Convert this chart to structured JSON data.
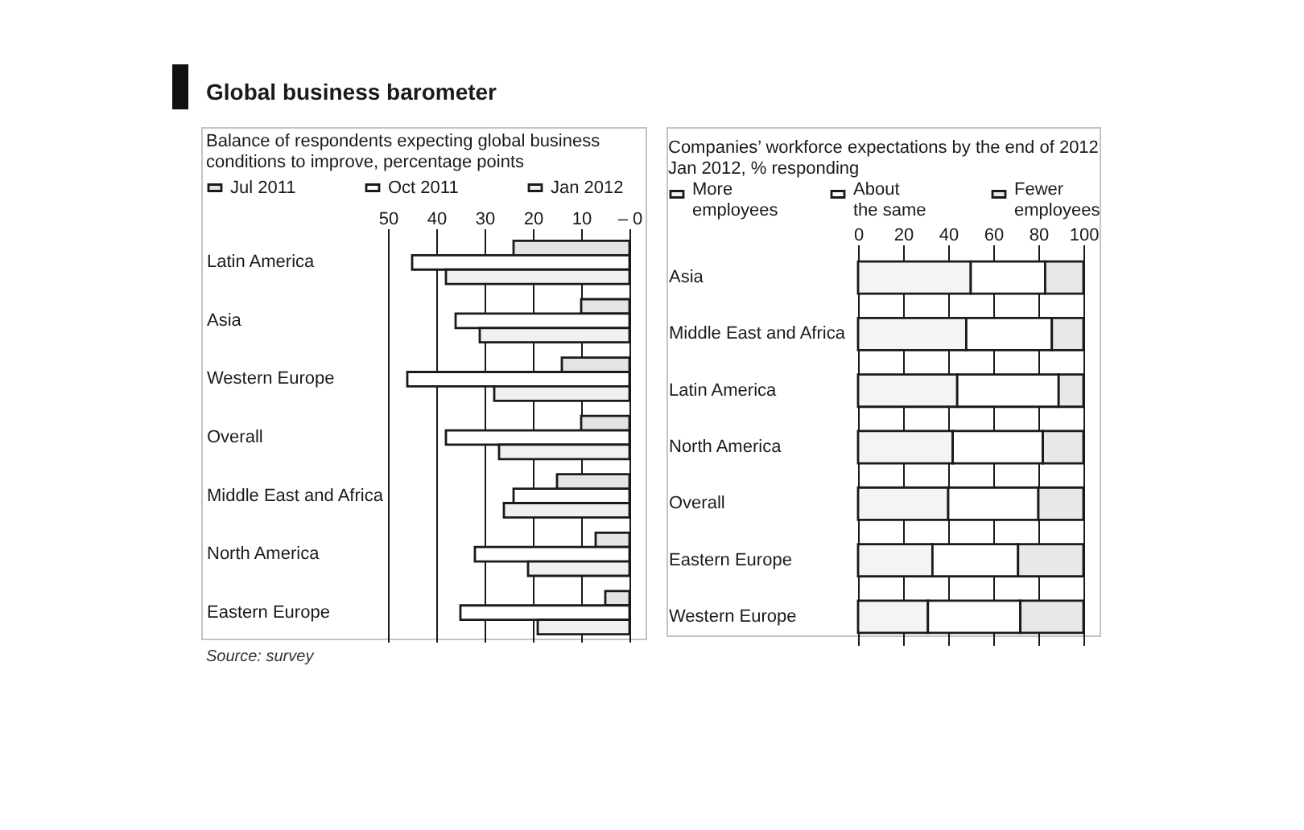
{
  "chart_data": [
    {
      "type": "bar",
      "orientation": "horizontal",
      "title": "Global business barometer",
      "subtitle": "Balance of respondents expecting global business conditions to improve, percentage points",
      "categories": [
        "Latin America",
        "Asia",
        "Western Europe",
        "Overall",
        "Middle East and Africa",
        "North America",
        "Eastern Europe"
      ],
      "series": [
        {
          "name": "Jul 2011",
          "color": "#e4e4e4",
          "values": [
            -24,
            -10,
            -14,
            -10,
            -15,
            -7,
            -5
          ]
        },
        {
          "name": "Oct 2011",
          "color": "#ffffff",
          "values": [
            -45,
            -36,
            -46,
            -38,
            -24,
            -32,
            -35
          ]
        },
        {
          "name": "Jan 2012",
          "color": "#f0f0f0",
          "values": [
            -38,
            -31,
            -28,
            -27,
            -26,
            -21,
            -19
          ]
        }
      ],
      "xlim": [
        -50,
        0
      ],
      "xticks": [
        {
          "value": -50,
          "label": "50"
        },
        {
          "value": -40,
          "label": "40"
        },
        {
          "value": -30,
          "label": "30"
        },
        {
          "value": -20,
          "label": "20"
        },
        {
          "value": -10,
          "label": "10"
        },
        {
          "value": 0,
          "label": "– 0"
        }
      ],
      "grid": "x",
      "legend": "top",
      "annotations": [
        "Source: survey"
      ]
    },
    {
      "type": "bar",
      "orientation": "horizontal",
      "stacked": true,
      "title": "Companies’ workforce expectations by the end of 2012",
      "subtitle": "Jan 2012, % responding",
      "categories": [
        "Asia",
        "Middle East and Africa",
        "Latin America",
        "North America",
        "Overall",
        "Eastern Europe",
        "Western Europe"
      ],
      "series": [
        {
          "name": "More employees",
          "color": "#f4f4f4",
          "values": [
            50,
            48,
            44,
            42,
            40,
            33,
            31
          ]
        },
        {
          "name": "About the same",
          "color": "#ffffff",
          "values": [
            33,
            38,
            45,
            40,
            40,
            38,
            41
          ]
        },
        {
          "name": "Fewer employees",
          "color": "#e8e8e8",
          "values": [
            17,
            14,
            11,
            18,
            20,
            29,
            28
          ]
        }
      ],
      "xlim": [
        0,
        100
      ],
      "xticks": [
        0,
        20,
        40,
        60,
        80,
        100
      ],
      "grid": "x",
      "legend": "top"
    }
  ]
}
